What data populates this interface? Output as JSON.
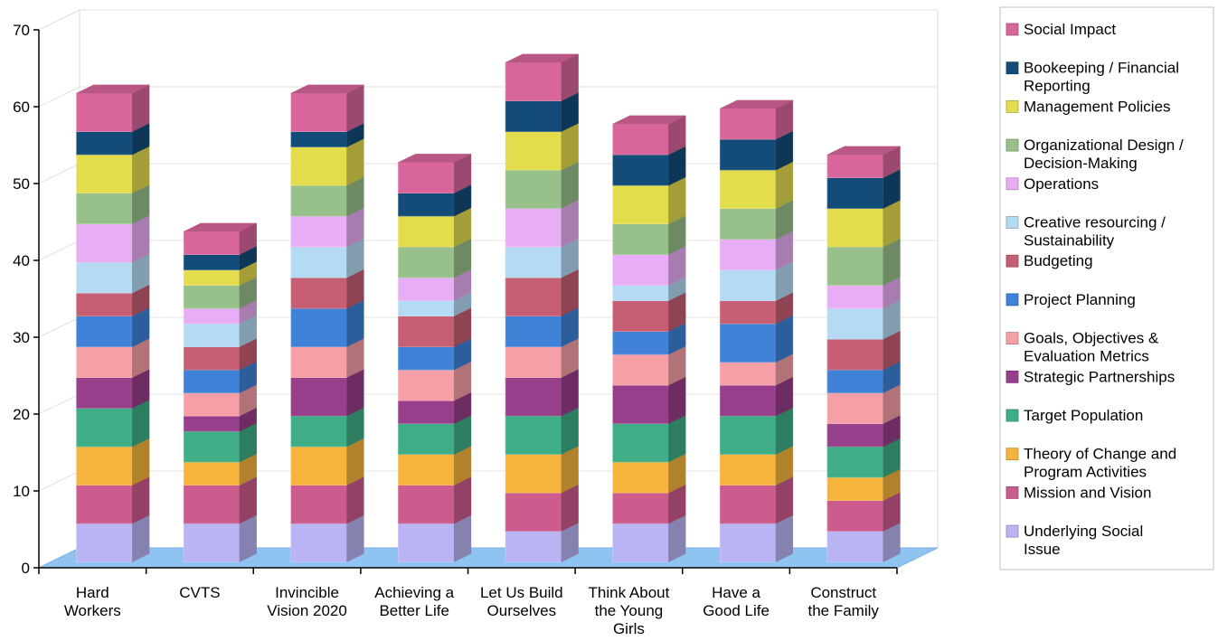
{
  "chart_data": {
    "type": "bar",
    "stacked": true,
    "three_d": true,
    "ylim": [
      0,
      70
    ],
    "yticks": [
      0,
      10,
      20,
      30,
      40,
      50,
      60,
      70
    ],
    "grid": true,
    "legend_position": "right",
    "categories": [
      [
        "Hard",
        "Workers"
      ],
      [
        "CVTS"
      ],
      [
        "Invincible",
        "Vision 2020"
      ],
      [
        "Achieving a",
        "Better Life"
      ],
      [
        "Let Us Build",
        "Ourselves"
      ],
      [
        "Think About",
        "the Young",
        "Girls"
      ],
      [
        "Have a",
        "Good Life"
      ],
      [
        "Construct",
        "the Family"
      ]
    ],
    "series": [
      {
        "name": [
          "Underlying Social",
          "Issue"
        ],
        "color": "#b9b4f4",
        "values": [
          5,
          5,
          5,
          5,
          4,
          5,
          5,
          4
        ]
      },
      {
        "name": [
          "Mission and Vision"
        ],
        "color": "#cc5b8e",
        "values": [
          5,
          5,
          5,
          5,
          5,
          4,
          5,
          4
        ]
      },
      {
        "name": [
          "Theory of Change and",
          "Program Activities"
        ],
        "color": "#f6b43d",
        "values": [
          5,
          3,
          5,
          4,
          5,
          4,
          4,
          3
        ]
      },
      {
        "name": [
          "Target Population"
        ],
        "color": "#3fae86",
        "values": [
          5,
          4,
          4,
          4,
          5,
          5,
          5,
          4
        ]
      },
      {
        "name": [
          "Strategic Partnerships"
        ],
        "color": "#973f8a",
        "values": [
          4,
          2,
          5,
          3,
          5,
          5,
          4,
          3
        ]
      },
      {
        "name": [
          "Goals, Objectives &",
          "Evaluation Metrics"
        ],
        "color": "#f69fa6",
        "values": [
          4,
          3,
          4,
          4,
          4,
          4,
          3,
          4
        ]
      },
      {
        "name": [
          "Project Planning"
        ],
        "color": "#3f82d8",
        "values": [
          4,
          3,
          5,
          3,
          4,
          3,
          5,
          3
        ]
      },
      {
        "name": [
          "Budgeting"
        ],
        "color": "#c75f74",
        "values": [
          3,
          3,
          4,
          4,
          5,
          4,
          3,
          4
        ]
      },
      {
        "name": [
          "Creative resourcing /",
          "Sustainability"
        ],
        "color": "#b4daf4",
        "values": [
          4,
          3,
          4,
          2,
          4,
          2,
          4,
          4
        ]
      },
      {
        "name": [
          "Operations"
        ],
        "color": "#e8aef5",
        "values": [
          5,
          2,
          4,
          3,
          5,
          4,
          4,
          3
        ]
      },
      {
        "name": [
          "Organizational Design /",
          "Decision-Making"
        ],
        "color": "#98c08b",
        "values": [
          4,
          3,
          4,
          4,
          5,
          4,
          4,
          5
        ]
      },
      {
        "name": [
          "Management Policies"
        ],
        "color": "#e3dc4d",
        "values": [
          5,
          2,
          5,
          4,
          5,
          5,
          5,
          5
        ]
      },
      {
        "name": [
          "Bookeeping / Financial",
          "Reporting"
        ],
        "color": "#134c79",
        "values": [
          3,
          2,
          2,
          3,
          4,
          4,
          4,
          4
        ]
      },
      {
        "name": [
          "Social Impact"
        ],
        "color": "#d8659b",
        "values": [
          5,
          3,
          5,
          4,
          5,
          4,
          4,
          3
        ]
      }
    ]
  }
}
